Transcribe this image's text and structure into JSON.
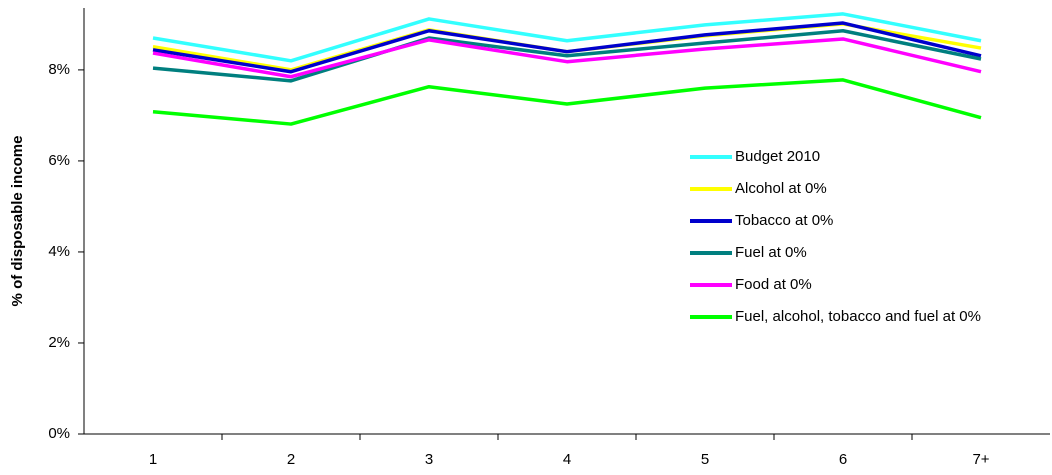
{
  "chart_data": {
    "type": "line",
    "y_label": "% of disposable income",
    "categories": [
      "1",
      "2",
      "3",
      "4",
      "5",
      "6",
      "7+"
    ],
    "series": [
      {
        "name": "Budget 2010",
        "color": "#33ffff",
        "values": [
          8.7,
          8.2,
          9.12,
          8.64,
          8.99,
          9.23,
          8.64
        ]
      },
      {
        "name": "Alcohol at 0%",
        "color": "#ffff00",
        "values": [
          8.51,
          8.0,
          8.88,
          8.4,
          8.75,
          9.01,
          8.48
        ]
      },
      {
        "name": "Tobacco at 0%",
        "color": "#0000cc",
        "values": [
          8.44,
          7.96,
          8.86,
          8.4,
          8.77,
          9.03,
          8.31
        ]
      },
      {
        "name": "Fuel at 0%",
        "color": "#007f7f",
        "values": [
          8.04,
          7.76,
          8.7,
          8.31,
          8.59,
          8.86,
          8.24
        ]
      },
      {
        "name": "Food at 0%",
        "color": "#ff00ff",
        "values": [
          8.37,
          7.85,
          8.66,
          8.18,
          8.46,
          8.68,
          7.96
        ]
      },
      {
        "name": "Fuel, alcohol, tobacco and fuel at 0%",
        "color": "#00ff00",
        "values": [
          7.08,
          6.81,
          7.63,
          7.25,
          7.6,
          7.78,
          6.95
        ]
      }
    ],
    "ylim": [
      0,
      9.36
    ],
    "yticks": [
      {
        "value": 0,
        "label": "0%"
      },
      {
        "value": 2,
        "label": "2%"
      },
      {
        "value": 4,
        "label": "4%"
      },
      {
        "value": 6,
        "label": "6%"
      },
      {
        "value": 8,
        "label": "8%"
      }
    ],
    "grid": false,
    "legend": "right"
  }
}
